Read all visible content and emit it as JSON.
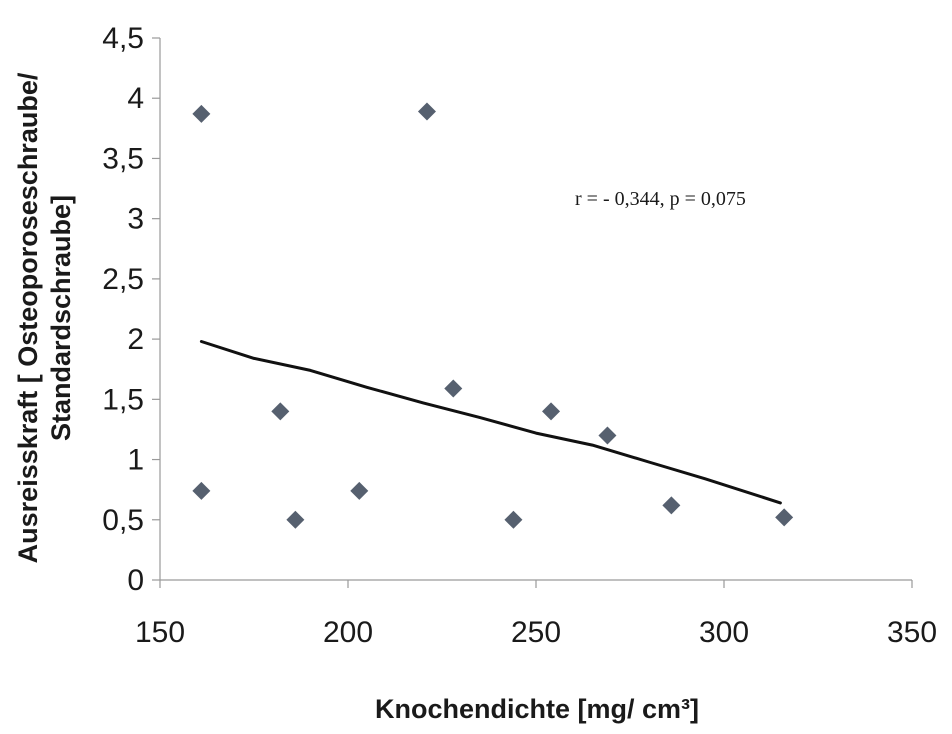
{
  "chart_data": {
    "type": "scatter",
    "title": "",
    "xlabel": "Knochendichte [mg/ cm³]",
    "ylabel_line1": "Ausreisskraft [ Osteoporoseschraube/",
    "ylabel_line2": "Standardschraube]",
    "xlim": [
      150,
      350
    ],
    "ylim": [
      0,
      4.5
    ],
    "x_ticks": [
      150,
      200,
      250,
      300,
      350
    ],
    "x_tick_labels": [
      "150",
      "200",
      "250",
      "300",
      "350"
    ],
    "y_ticks": [
      0,
      0.5,
      1,
      1.5,
      2,
      2.5,
      3,
      3.5,
      4,
      4.5
    ],
    "y_tick_labels": [
      "0",
      "0,5",
      "1",
      "1,5",
      "2",
      "2,5",
      "3",
      "3,5",
      "4",
      "4,5"
    ],
    "grid": false,
    "marker": "diamond",
    "series": [
      {
        "points": [
          {
            "x": 161,
            "y": 3.87
          },
          {
            "x": 221,
            "y": 3.89
          },
          {
            "x": 161,
            "y": 0.74
          },
          {
            "x": 182,
            "y": 1.4
          },
          {
            "x": 186,
            "y": 0.5
          },
          {
            "x": 203,
            "y": 0.74
          },
          {
            "x": 228,
            "y": 1.59
          },
          {
            "x": 244,
            "y": 0.5
          },
          {
            "x": 254,
            "y": 1.4
          },
          {
            "x": 269,
            "y": 1.2
          },
          {
            "x": 286,
            "y": 0.62
          },
          {
            "x": 316,
            "y": 0.52
          }
        ]
      }
    ],
    "trendline": {
      "points": [
        {
          "x": 161,
          "y": 1.98
        },
        {
          "x": 175,
          "y": 1.84
        },
        {
          "x": 190,
          "y": 1.74
        },
        {
          "x": 205,
          "y": 1.6
        },
        {
          "x": 220,
          "y": 1.47
        },
        {
          "x": 235,
          "y": 1.35
        },
        {
          "x": 250,
          "y": 1.22
        },
        {
          "x": 265,
          "y": 1.12
        },
        {
          "x": 280,
          "y": 0.98
        },
        {
          "x": 295,
          "y": 0.84
        },
        {
          "x": 315,
          "y": 0.64
        }
      ]
    },
    "annotation": "r =  - 0,344, p = 0,075",
    "colors": {
      "marker": "#56606f",
      "trendline": "#111111",
      "axis": "#9a9a9a",
      "text": "#1a1a1a"
    }
  }
}
